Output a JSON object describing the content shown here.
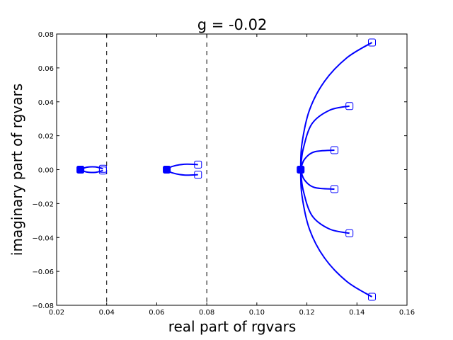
{
  "chart_data": {
    "type": "line",
    "title": "g = -0.02",
    "xlabel": "real part of rgvars",
    "ylabel": "imaginary part of rgvars",
    "xlim": [
      0.02,
      0.16
    ],
    "ylim": [
      -0.08,
      0.08
    ],
    "xticks": [
      0.02,
      0.04,
      0.06,
      0.08,
      0.1,
      0.12,
      0.14,
      0.16
    ],
    "xtick_labels": [
      "0.02",
      "0.04",
      "0.06",
      "0.08",
      "0.10",
      "0.12",
      "0.14",
      "0.16"
    ],
    "yticks": [
      -0.08,
      -0.06,
      -0.04,
      -0.02,
      0.0,
      0.02,
      0.04,
      0.06,
      0.08
    ],
    "ytick_labels": [
      "−0.08",
      "−0.06",
      "−0.04",
      "−0.02",
      "0.00",
      "0.02",
      "0.04",
      "0.06",
      "0.08"
    ],
    "grid": false,
    "vlines": [
      0.04,
      0.08
    ],
    "line_color": "#0000ff",
    "start_points": [
      {
        "x": 0.0295,
        "y": 0.0
      },
      {
        "x": 0.064,
        "y": 0.0
      },
      {
        "x": 0.1175,
        "y": 0.0
      }
    ],
    "end_points": [
      {
        "x": 0.0385,
        "y": 0.0005
      },
      {
        "x": 0.0385,
        "y": -0.0005
      },
      {
        "x": 0.0765,
        "y": 0.003
      },
      {
        "x": 0.0765,
        "y": -0.003
      },
      {
        "x": 0.131,
        "y": 0.0115
      },
      {
        "x": 0.131,
        "y": -0.0115
      },
      {
        "x": 0.137,
        "y": 0.0375
      },
      {
        "x": 0.137,
        "y": -0.0375
      },
      {
        "x": 0.146,
        "y": 0.075
      },
      {
        "x": 0.146,
        "y": -0.075
      }
    ],
    "series": [
      {
        "points": [
          [
            0.0295,
            0.0
          ],
          [
            0.032,
            0.0014
          ],
          [
            0.0355,
            0.0016
          ],
          [
            0.0385,
            0.0005
          ]
        ]
      },
      {
        "points": [
          [
            0.0295,
            0.0
          ],
          [
            0.032,
            -0.0014
          ],
          [
            0.0355,
            -0.0016
          ],
          [
            0.0385,
            -0.0005
          ]
        ]
      },
      {
        "points": [
          [
            0.064,
            0.0
          ],
          [
            0.066,
            0.0018
          ],
          [
            0.071,
            0.0032
          ],
          [
            0.0765,
            0.003
          ]
        ]
      },
      {
        "points": [
          [
            0.064,
            0.0
          ],
          [
            0.066,
            -0.0018
          ],
          [
            0.071,
            -0.0032
          ],
          [
            0.0765,
            -0.003
          ]
        ]
      },
      {
        "points": [
          [
            0.1175,
            0.0
          ],
          [
            0.119,
            0.006
          ],
          [
            0.123,
            0.0105
          ],
          [
            0.131,
            0.0115
          ]
        ]
      },
      {
        "points": [
          [
            0.1175,
            0.0
          ],
          [
            0.119,
            -0.006
          ],
          [
            0.123,
            -0.0105
          ],
          [
            0.131,
            -0.0115
          ]
        ]
      },
      {
        "points": [
          [
            0.1175,
            0.0
          ],
          [
            0.1185,
            0.012
          ],
          [
            0.122,
            0.027
          ],
          [
            0.129,
            0.035
          ],
          [
            0.137,
            0.0375
          ]
        ]
      },
      {
        "points": [
          [
            0.1175,
            0.0
          ],
          [
            0.1185,
            -0.012
          ],
          [
            0.122,
            -0.027
          ],
          [
            0.129,
            -0.035
          ],
          [
            0.137,
            -0.0375
          ]
        ]
      },
      {
        "points": [
          [
            0.1175,
            0.0
          ],
          [
            0.118,
            0.015
          ],
          [
            0.121,
            0.035
          ],
          [
            0.127,
            0.052
          ],
          [
            0.136,
            0.066
          ],
          [
            0.146,
            0.075
          ]
        ]
      },
      {
        "points": [
          [
            0.1175,
            0.0
          ],
          [
            0.118,
            -0.015
          ],
          [
            0.121,
            -0.035
          ],
          [
            0.127,
            -0.052
          ],
          [
            0.136,
            -0.066
          ],
          [
            0.146,
            -0.075
          ]
        ]
      }
    ]
  }
}
